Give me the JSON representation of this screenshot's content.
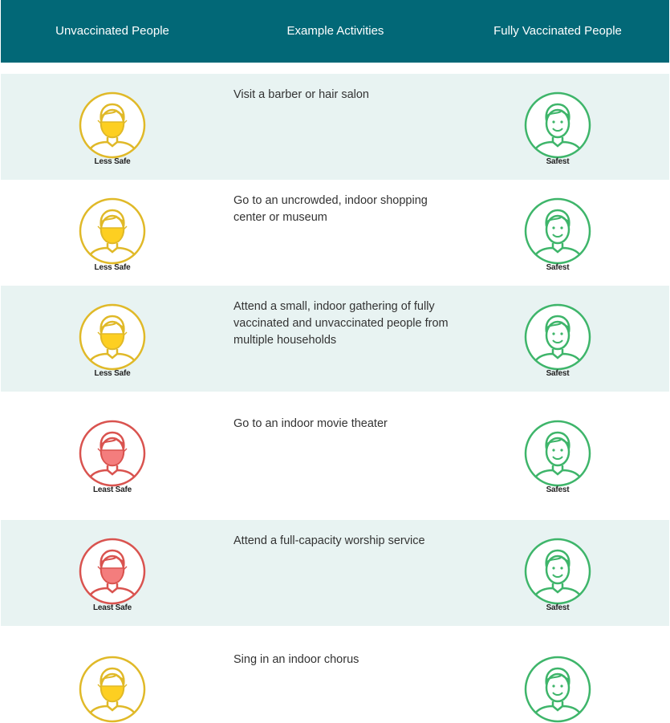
{
  "header": {
    "col1": "Unvaccinated People",
    "col2": "Example Activities",
    "col3": "Fully Vaccinated People"
  },
  "colors": {
    "header_bg": "#026877",
    "less_safe": "#e0b928",
    "less_safe_fill": "#fdcf21",
    "least_safe": "#d9534f",
    "least_safe_fill": "#f47d7d",
    "safest": "#3eb56a"
  },
  "rows": [
    {
      "activity": "Visit a barber or hair salon",
      "unvaccinated": "Less Safe",
      "vaccinated": "Safest",
      "unvaccinated_icon": "masked-person-icon",
      "vaccinated_icon": "smiling-person-icon"
    },
    {
      "activity": "Go to an uncrowded, indoor shopping center or museum",
      "unvaccinated": "Less Safe",
      "vaccinated": "Safest",
      "unvaccinated_icon": "masked-person-icon",
      "vaccinated_icon": "smiling-person-icon"
    },
    {
      "activity": "Attend a small, indoor gathering of fully vaccinated and unvaccinated people from multiple households",
      "unvaccinated": "Less Safe",
      "vaccinated": "Safest",
      "unvaccinated_icon": "masked-person-icon",
      "vaccinated_icon": "smiling-person-icon"
    },
    {
      "activity": "Go to an indoor movie theater",
      "unvaccinated": "Least Safe",
      "vaccinated": "Safest",
      "unvaccinated_icon": "masked-person-icon",
      "vaccinated_icon": "smiling-person-icon"
    },
    {
      "activity": "Attend a full-capacity worship service",
      "unvaccinated": "Least Safe",
      "vaccinated": "Safest",
      "unvaccinated_icon": "masked-person-icon",
      "vaccinated_icon": "smiling-person-icon"
    },
    {
      "activity": "Sing in an indoor chorus",
      "unvaccinated": "",
      "vaccinated": "",
      "unvaccinated_icon": "masked-person-icon",
      "vaccinated_icon": "smiling-person-icon"
    }
  ]
}
